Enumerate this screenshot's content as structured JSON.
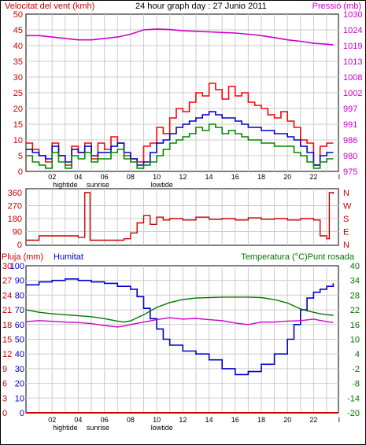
{
  "colors": {
    "wind": "#ff0000",
    "gust": "#ff0000",
    "avgwind": "#0000cc",
    "windgreen": "#008800",
    "pressure": "#cc00cc",
    "direction": "#cc0000",
    "humidity": "#0000cc",
    "temperature": "#007700",
    "dewpoint": "#cc00cc",
    "rain": "#cc0000",
    "grid": "#cccccc",
    "frame": "#000000"
  },
  "chart_data": [
    {
      "type": "line",
      "panel": "wind-pressure",
      "title": "24 hour graph day : 27 Junio 2011",
      "ylabel_left": "Velocitat del vent (kmh)",
      "ylabel_right": "Pressió (mb)",
      "yticks_left": [
        "50",
        "45",
        "40",
        "35",
        "30",
        "25",
        "20",
        "15",
        "10",
        "5",
        "0"
      ],
      "yticks_right": [
        "1030",
        "1024",
        "1019",
        "1013",
        "1008",
        "1002",
        "997",
        "991",
        "986",
        "980",
        "975"
      ],
      "ylim_left": [
        0,
        50
      ],
      "ylim_right": [
        975,
        1030
      ],
      "x_ticks": [
        "02",
        "04",
        "06",
        "08",
        "10",
        "12",
        "14",
        "16",
        "18",
        "20",
        "22"
      ],
      "x_annotations": [
        {
          "x": 3.0,
          "label": "hightide"
        },
        {
          "x": 5.5,
          "label": "sunrise"
        },
        {
          "x": 10.4,
          "label": "lowtide"
        }
      ],
      "xlim": [
        0,
        23.9
      ],
      "grid": true,
      "series": [
        {
          "key": "gust",
          "x": [
            0,
            0.5,
            1,
            1.5,
            2,
            2.5,
            3,
            3.5,
            4,
            4.5,
            5,
            5.5,
            6,
            6.5,
            7,
            7.5,
            8,
            8.5,
            9,
            9.5,
            10,
            10.5,
            11,
            11.5,
            12,
            12.5,
            13,
            13.5,
            14,
            14.5,
            15,
            15.5,
            16,
            16.5,
            17,
            17.5,
            18,
            18.5,
            19,
            19.5,
            20,
            20.5,
            21,
            21.5,
            22,
            22.5,
            23,
            23.5
          ],
          "values": [
            9,
            7,
            5,
            3,
            9,
            5,
            2,
            8,
            6,
            9,
            4,
            9,
            7,
            11,
            9,
            5,
            4,
            3,
            8,
            9,
            14,
            12,
            17,
            20,
            19,
            22,
            25,
            24,
            28,
            26,
            23,
            27,
            24,
            25,
            22,
            21,
            20,
            18,
            17,
            19,
            16,
            14,
            10,
            9,
            2,
            8,
            9,
            9
          ]
        },
        {
          "key": "avgwind",
          "x": [
            0,
            0.5,
            1,
            1.5,
            2,
            2.5,
            3,
            3.5,
            4,
            4.5,
            5,
            5.5,
            6,
            6.5,
            7,
            7.5,
            8,
            8.5,
            9,
            9.5,
            10,
            10.5,
            11,
            11.5,
            12,
            12.5,
            13,
            13.5,
            14,
            14.5,
            15,
            15.5,
            16,
            16.5,
            17,
            17.5,
            18,
            18.5,
            19,
            19.5,
            20,
            20.5,
            21,
            21.5,
            22,
            22.5,
            23,
            23.5
          ],
          "values": [
            7,
            6,
            5,
            4,
            8,
            5,
            3,
            7,
            6,
            8,
            5,
            6,
            6,
            8,
            9,
            6,
            4,
            2,
            3,
            6,
            9,
            10,
            12,
            14,
            15,
            16,
            17,
            18,
            19,
            18,
            17,
            17,
            16,
            15,
            14,
            14,
            13,
            13,
            12,
            12,
            11,
            10,
            8,
            6,
            2,
            5,
            6,
            6
          ]
        },
        {
          "key": "windgreen",
          "x": [
            0,
            0.5,
            1,
            1.5,
            2,
            2.5,
            3,
            3.5,
            4,
            4.5,
            5,
            5.5,
            6,
            6.5,
            7,
            7.5,
            8,
            8.5,
            9,
            9.5,
            10,
            10.5,
            11,
            11.5,
            12,
            12.5,
            13,
            13.5,
            14,
            14.5,
            15,
            15.5,
            16,
            16.5,
            17,
            17.5,
            18,
            18.5,
            19,
            19.5,
            20,
            20.5,
            21,
            21.5,
            22,
            22.5,
            23,
            23.5
          ],
          "values": [
            5,
            3,
            2,
            1,
            6,
            3,
            1,
            5,
            4,
            6,
            3,
            4,
            4,
            6,
            7,
            4,
            3,
            1,
            2,
            3,
            5,
            7,
            9,
            10,
            11,
            12,
            14,
            13,
            15,
            14,
            12,
            13,
            12,
            11,
            10,
            10,
            9,
            9,
            8,
            8,
            8,
            6,
            5,
            3,
            1,
            3,
            4,
            4
          ]
        },
        {
          "key": "pressure",
          "x": [
            0,
            1,
            2,
            3,
            4,
            5,
            6,
            7,
            8,
            9,
            10,
            11,
            12,
            13,
            14,
            15,
            16,
            17,
            18,
            19,
            20,
            21,
            22,
            23,
            23.5
          ],
          "values": [
            1022.5,
            1022.5,
            1022,
            1021.5,
            1021,
            1021,
            1021.5,
            1022,
            1023,
            1024.5,
            1024.8,
            1024.6,
            1024.2,
            1024,
            1023.8,
            1023.6,
            1023.4,
            1023,
            1022.5,
            1021.8,
            1021,
            1020.5,
            1019.8,
            1019.5,
            1019.3
          ]
        }
      ]
    },
    {
      "type": "line",
      "panel": "wind-direction",
      "yticks_left": [
        "360",
        "270",
        "180",
        "90",
        "0"
      ],
      "yticks_right": [
        "N",
        "W",
        "S",
        "E",
        "N"
      ],
      "ylim": [
        0,
        360
      ],
      "xlim": [
        0,
        23.9
      ],
      "grid": true,
      "series": [
        {
          "key": "direction",
          "x": [
            0,
            0.6,
            1,
            2,
            3,
            4,
            4.4,
            4.5,
            4.8,
            4.9,
            5,
            6,
            7,
            7.5,
            8,
            8.5,
            9,
            9.5,
            10,
            10.5,
            11,
            12,
            13,
            14,
            15,
            16,
            17,
            18,
            19,
            20,
            21,
            22,
            22.5,
            23,
            23.2,
            23.3,
            23.5
          ],
          "values": [
            30,
            30,
            60,
            60,
            60,
            50,
            50,
            360,
            360,
            30,
            30,
            30,
            30,
            40,
            80,
            150,
            200,
            140,
            190,
            170,
            180,
            170,
            190,
            175,
            180,
            170,
            185,
            175,
            180,
            170,
            180,
            170,
            60,
            40,
            360,
            360,
            350
          ]
        }
      ]
    },
    {
      "type": "line",
      "panel": "rain-humidity-temperature",
      "ylabel_left_1": "Pluja (mm)",
      "ylabel_left_2": "Humitat",
      "ylabel_right": "Temperatura (°C)Punt rosada",
      "yticks_rain": [
        "30",
        "27",
        "24",
        "21",
        "18",
        "15",
        "12",
        "9",
        "6",
        "3",
        "0"
      ],
      "yticks_humidity": [
        "100",
        "90",
        "80",
        "70",
        "60",
        "50",
        "40",
        "30",
        "20",
        "10",
        "0"
      ],
      "yticks_temperature": [
        "40",
        "34",
        "28",
        "22",
        "16",
        "10",
        "4",
        "-2",
        "-8",
        "-14",
        "-20"
      ],
      "x_ticks": [
        "02",
        "04",
        "06",
        "08",
        "10",
        "12",
        "14",
        "16",
        "18",
        "20",
        "22"
      ],
      "x_annotations": [
        {
          "x": 3.0,
          "label": "hightide"
        },
        {
          "x": 5.5,
          "label": "sunrise"
        },
        {
          "x": 10.4,
          "label": "lowtide"
        }
      ],
      "xlim": [
        0,
        23.9
      ],
      "grid": true,
      "series": [
        {
          "key": "humidity",
          "x": [
            0,
            1,
            2,
            3,
            4,
            5,
            6,
            7,
            8,
            8.5,
            9,
            9.5,
            10,
            10.5,
            11,
            12,
            13,
            14,
            15,
            16,
            17,
            18,
            19,
            20,
            20.5,
            21,
            21.5,
            22,
            22.5,
            23,
            23.5
          ],
          "values": [
            87,
            89,
            90,
            91,
            90,
            89,
            88,
            86,
            84,
            79,
            71,
            64,
            57,
            50,
            46,
            42,
            40,
            36,
            30,
            26,
            28,
            33,
            40,
            50,
            60,
            70,
            78,
            82,
            84,
            86,
            88
          ]
        },
        {
          "key": "temperature",
          "x": [
            0,
            1,
            2,
            3,
            4,
            5,
            6,
            7,
            7.5,
            8,
            9,
            10,
            11,
            12,
            13,
            14,
            15,
            16,
            17,
            18,
            19,
            20,
            20.5,
            21,
            21.5,
            22,
            22.5,
            23,
            23.5
          ],
          "values": [
            22.0,
            21.0,
            20.4,
            20.0,
            19.6,
            19.2,
            18.4,
            17.4,
            17.0,
            17.5,
            20.0,
            23.0,
            25.0,
            26.2,
            26.8,
            27.0,
            27.2,
            27.2,
            27.2,
            27.0,
            26.2,
            24.8,
            23.6,
            22.4,
            21.6,
            21.0,
            20.4,
            20.0,
            19.8
          ]
        },
        {
          "key": "dewpoint",
          "x": [
            0,
            1,
            2,
            3,
            4,
            5,
            6,
            7,
            7.5,
            8,
            9,
            10,
            11,
            12,
            13,
            14,
            15,
            16,
            17,
            18,
            19,
            20,
            21,
            22,
            23,
            23.5
          ],
          "values": [
            17.2,
            17.6,
            17.3,
            17.0,
            16.8,
            16.4,
            15.6,
            15.0,
            15.4,
            16.0,
            17.0,
            18.0,
            18.8,
            18.2,
            18.5,
            18.0,
            17.6,
            16.6,
            16.0,
            17.0,
            17.0,
            17.4,
            17.6,
            18.2,
            17.2,
            16.8
          ]
        },
        {
          "key": "rain",
          "x": [
            0,
            23.9
          ],
          "values": [
            0,
            0
          ]
        }
      ]
    }
  ]
}
